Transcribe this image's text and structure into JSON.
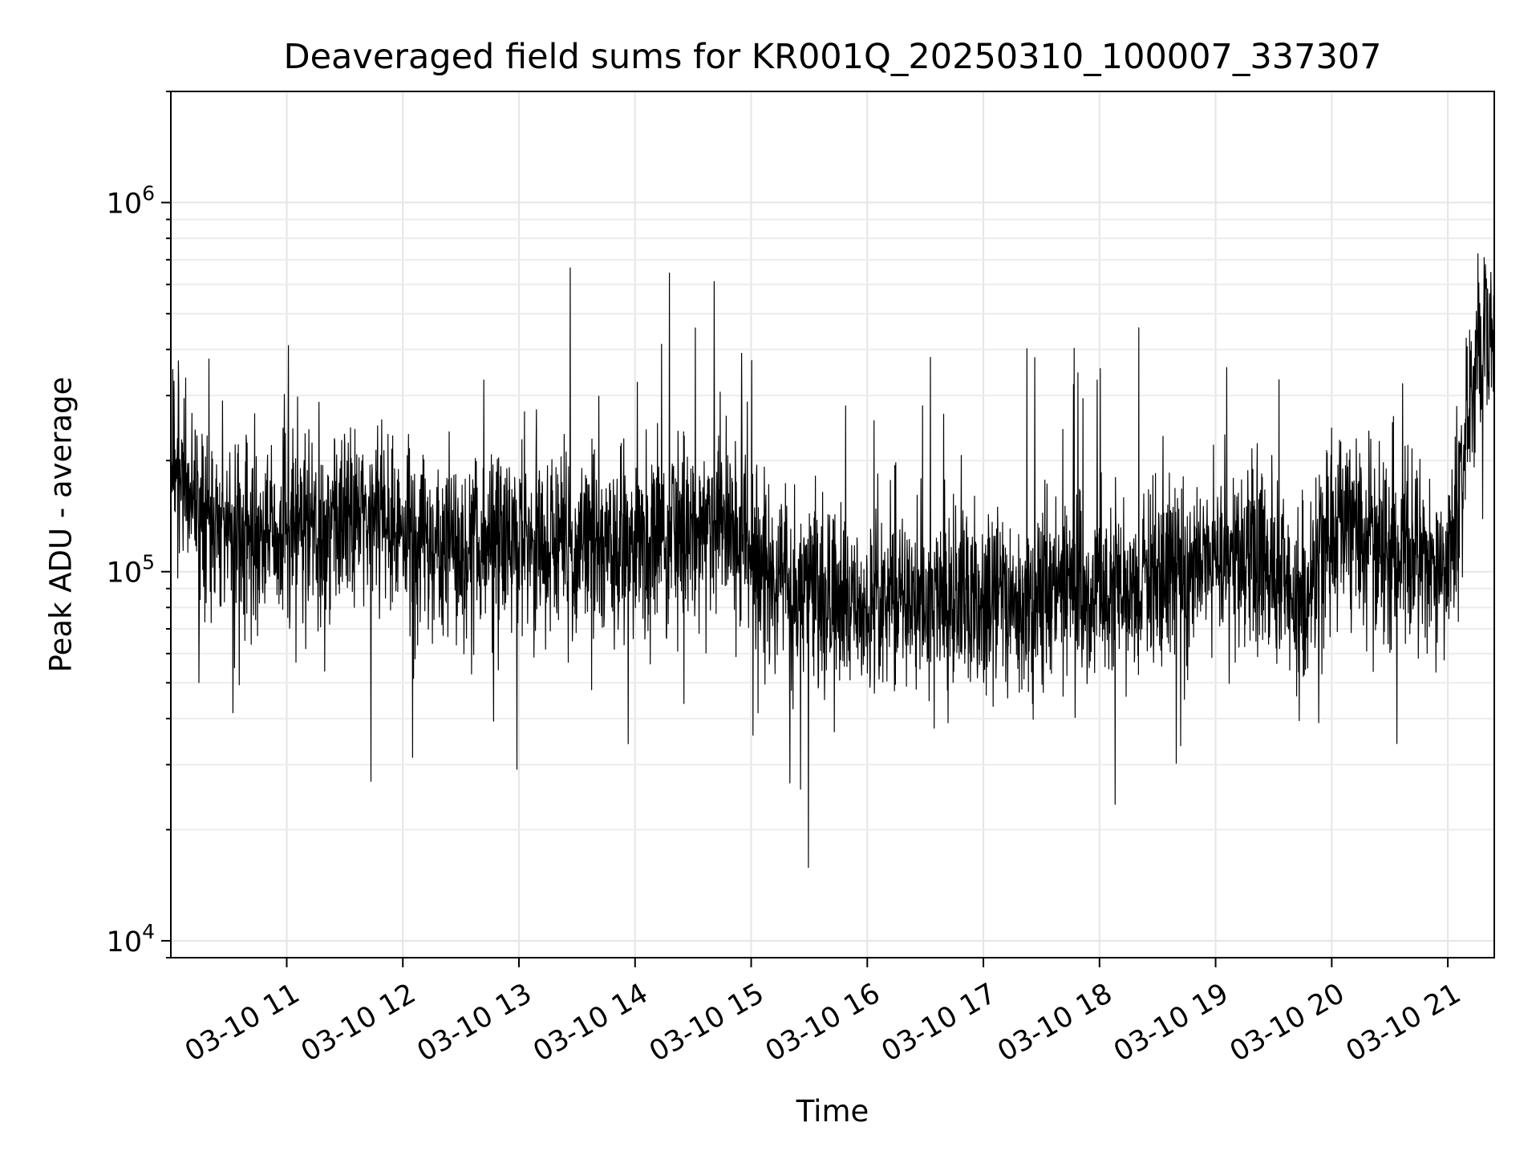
{
  "chart_data": {
    "type": "line",
    "title": "Deaveraged field sums for KR001Q_20250310_100007_337307",
    "xlabel": "Time",
    "ylabel": "Peak ADU - average",
    "x_range": [
      "2025-03-10T10:00:07",
      "2025-03-10T21:24:00"
    ],
    "y_scale": "log",
    "ylim": [
      9000,
      2000000
    ],
    "grid": true,
    "grid_minor_y": true,
    "line_color": "#000000",
    "x_ticks": [
      {
        "value": "2025-03-10T11:00",
        "label": "03-10 11"
      },
      {
        "value": "2025-03-10T12:00",
        "label": "03-10 12"
      },
      {
        "value": "2025-03-10T13:00",
        "label": "03-10 13"
      },
      {
        "value": "2025-03-10T14:00",
        "label": "03-10 14"
      },
      {
        "value": "2025-03-10T15:00",
        "label": "03-10 15"
      },
      {
        "value": "2025-03-10T16:00",
        "label": "03-10 16"
      },
      {
        "value": "2025-03-10T17:00",
        "label": "03-10 17"
      },
      {
        "value": "2025-03-10T18:00",
        "label": "03-10 18"
      },
      {
        "value": "2025-03-10T19:00",
        "label": "03-10 19"
      },
      {
        "value": "2025-03-10T20:00",
        "label": "03-10 20"
      },
      {
        "value": "2025-03-10T21:00",
        "label": "03-10 21"
      }
    ],
    "y_ticks": [
      {
        "value": 10000,
        "base": "10",
        "exp": "4"
      },
      {
        "value": 100000,
        "base": "10",
        "exp": "5"
      },
      {
        "value": 1000000,
        "base": "10",
        "exp": "6"
      }
    ],
    "series": [
      {
        "x": [
          "2025-03-10T10:00",
          "2025-03-10T10:15",
          "2025-03-10T10:30",
          "2025-03-10T10:45",
          "2025-03-10T11:00",
          "2025-03-10T11:15",
          "2025-03-10T11:30",
          "2025-03-10T11:45",
          "2025-03-10T12:00",
          "2025-03-10T12:15",
          "2025-03-10T12:30",
          "2025-03-10T12:45",
          "2025-03-10T13:00",
          "2025-03-10T13:15",
          "2025-03-10T13:30",
          "2025-03-10T13:45",
          "2025-03-10T14:00",
          "2025-03-10T14:15",
          "2025-03-10T14:30",
          "2025-03-10T14:45",
          "2025-03-10T15:00",
          "2025-03-10T15:15",
          "2025-03-10T15:30",
          "2025-03-10T15:45",
          "2025-03-10T16:00",
          "2025-03-10T16:15",
          "2025-03-10T16:30",
          "2025-03-10T16:45",
          "2025-03-10T17:00",
          "2025-03-10T17:15",
          "2025-03-10T17:30",
          "2025-03-10T17:45",
          "2025-03-10T18:00",
          "2025-03-10T18:15",
          "2025-03-10T18:30",
          "2025-03-10T18:45",
          "2025-03-10T19:00",
          "2025-03-10T19:15",
          "2025-03-10T19:30",
          "2025-03-10T19:45",
          "2025-03-10T20:00",
          "2025-03-10T20:15",
          "2025-03-10T20:30",
          "2025-03-10T20:45",
          "2025-03-10T21:00",
          "2025-03-10T21:15",
          "2025-03-10T21:24"
        ],
        "y": [
          200000,
          150000,
          130000,
          120000,
          130000,
          125000,
          130000,
          140000,
          125000,
          120000,
          115000,
          120000,
          120000,
          115000,
          115000,
          120000,
          120000,
          125000,
          125000,
          130000,
          115000,
          95000,
          90000,
          85000,
          80000,
          80000,
          80000,
          85000,
          85000,
          85000,
          85000,
          85000,
          85000,
          90000,
          95000,
          100000,
          110000,
          110000,
          100000,
          80000,
          140000,
          130000,
          120000,
          110000,
          100000,
          400000,
          500000
        ]
      }
    ]
  }
}
